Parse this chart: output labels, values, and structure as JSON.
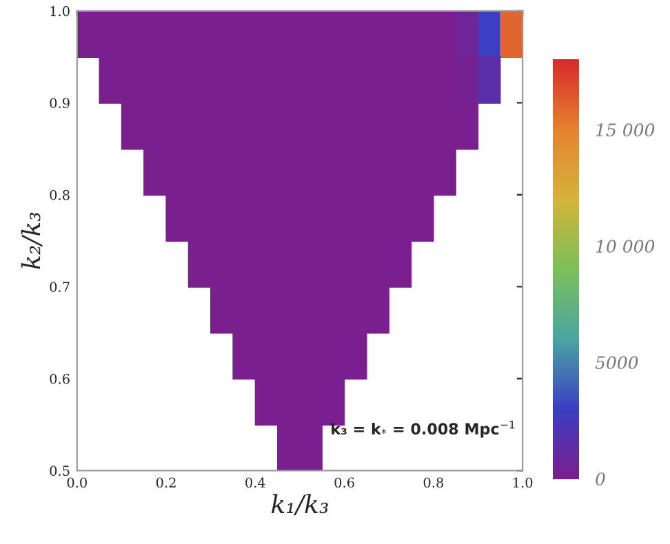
{
  "chart_data": {
    "type": "scatter",
    "xlabel": "k₁/k₃",
    "ylabel": "k₂/k₃",
    "annotations": [
      "k₃ = k$_{*}$ = 0.008 Mpc$^{−1}$"
    ],
    "marker": "square",
    "xlim": [
      0,
      1
    ],
    "xticks": [
      {
        "value": 0,
        "label": "0.0"
      },
      0.2,
      0.4,
      0.6,
      0.8,
      {
        "value": 1,
        "label": "1.0"
      }
    ],
    "ylim": [
      0.5,
      1
    ],
    "yticks": [
      0.5,
      0.6,
      0.7,
      0.8,
      0.9,
      {
        "value": 1,
        "label": "1.0"
      }
    ],
    "clim": [
      0,
      18000
    ],
    "cticks": [
      0,
      5000,
      {
        "value": 10000,
        "label": "10 000"
      },
      {
        "value": 15000,
        "label": "15 000"
      }
    ],
    "x": [
      0.025,
      0.075,
      0.125,
      0.175,
      0.225,
      0.275,
      0.325,
      0.375,
      0.425,
      0.475,
      0.525,
      0.575,
      0.625,
      0.675,
      0.725,
      0.775,
      0.825,
      0.875,
      0.925,
      0.975,
      0.075,
      0.125,
      0.175,
      0.225,
      0.275,
      0.325,
      0.375,
      0.425,
      0.475,
      0.525,
      0.575,
      0.625,
      0.675,
      0.725,
      0.775,
      0.825,
      0.875,
      0.925,
      0.125,
      0.175,
      0.225,
      0.275,
      0.325,
      0.375,
      0.425,
      0.475,
      0.525,
      0.575,
      0.625,
      0.675,
      0.725,
      0.775,
      0.825,
      0.875,
      0.175,
      0.225,
      0.275,
      0.325,
      0.375,
      0.425,
      0.475,
      0.525,
      0.575,
      0.625,
      0.675,
      0.725,
      0.775,
      0.825,
      0.225,
      0.275,
      0.325,
      0.375,
      0.425,
      0.475,
      0.525,
      0.575,
      0.625,
      0.675,
      0.725,
      0.775,
      0.275,
      0.325,
      0.375,
      0.425,
      0.475,
      0.525,
      0.575,
      0.625,
      0.675,
      0.725,
      0.325,
      0.375,
      0.425,
      0.475,
      0.525,
      0.575,
      0.625,
      0.675,
      0.375,
      0.425,
      0.475,
      0.525,
      0.575,
      0.625,
      0.425,
      0.475,
      0.525,
      0.575,
      0.475,
      0.525
    ],
    "values": [
      0.975,
      0.975,
      0.975,
      0.975,
      0.975,
      0.975,
      0.975,
      0.975,
      0.975,
      0.975,
      0.975,
      0.975,
      0.975,
      0.975,
      0.975,
      0.975,
      0.975,
      0.975,
      0.975,
      0.975,
      0.925,
      0.925,
      0.925,
      0.925,
      0.925,
      0.925,
      0.925,
      0.925,
      0.925,
      0.925,
      0.925,
      0.925,
      0.925,
      0.925,
      0.925,
      0.925,
      0.925,
      0.925,
      0.875,
      0.875,
      0.875,
      0.875,
      0.875,
      0.875,
      0.875,
      0.875,
      0.875,
      0.875,
      0.875,
      0.875,
      0.875,
      0.875,
      0.875,
      0.875,
      0.825,
      0.825,
      0.825,
      0.825,
      0.825,
      0.825,
      0.825,
      0.825,
      0.825,
      0.825,
      0.825,
      0.825,
      0.825,
      0.825,
      0.775,
      0.775,
      0.775,
      0.775,
      0.775,
      0.775,
      0.775,
      0.775,
      0.775,
      0.775,
      0.775,
      0.775,
      0.725,
      0.725,
      0.725,
      0.725,
      0.725,
      0.725,
      0.725,
      0.725,
      0.725,
      0.725,
      0.675,
      0.675,
      0.675,
      0.675,
      0.675,
      0.675,
      0.675,
      0.675,
      0.625,
      0.625,
      0.625,
      0.625,
      0.625,
      0.625,
      0.575,
      0.575,
      0.575,
      0.575,
      0.525,
      0.525
    ],
    "cvalues": [
      0,
      0,
      0,
      0,
      0,
      0,
      0,
      0,
      0,
      0,
      0,
      0,
      0,
      0,
      0,
      0,
      0,
      600,
      3000,
      16000,
      0,
      0,
      0,
      0,
      0,
      0,
      0,
      0,
      0,
      0,
      0,
      0,
      0,
      0,
      0,
      0,
      300,
      1500,
      0,
      0,
      0,
      0,
      0,
      0,
      0,
      0,
      0,
      0,
      0,
      0,
      0,
      0,
      0,
      0,
      0,
      0,
      0,
      0,
      0,
      0,
      0,
      0,
      0,
      0,
      0,
      0,
      0,
      0,
      0,
      0,
      0,
      0,
      0,
      0,
      0,
      0,
      0,
      0,
      0,
      0,
      0,
      0,
      0,
      0,
      0,
      0,
      0,
      0,
      0,
      0,
      0,
      0,
      0,
      0,
      0,
      0,
      0,
      0,
      0,
      0,
      0,
      0,
      0,
      0,
      0,
      0,
      0,
      0,
      0,
      0
    ]
  }
}
